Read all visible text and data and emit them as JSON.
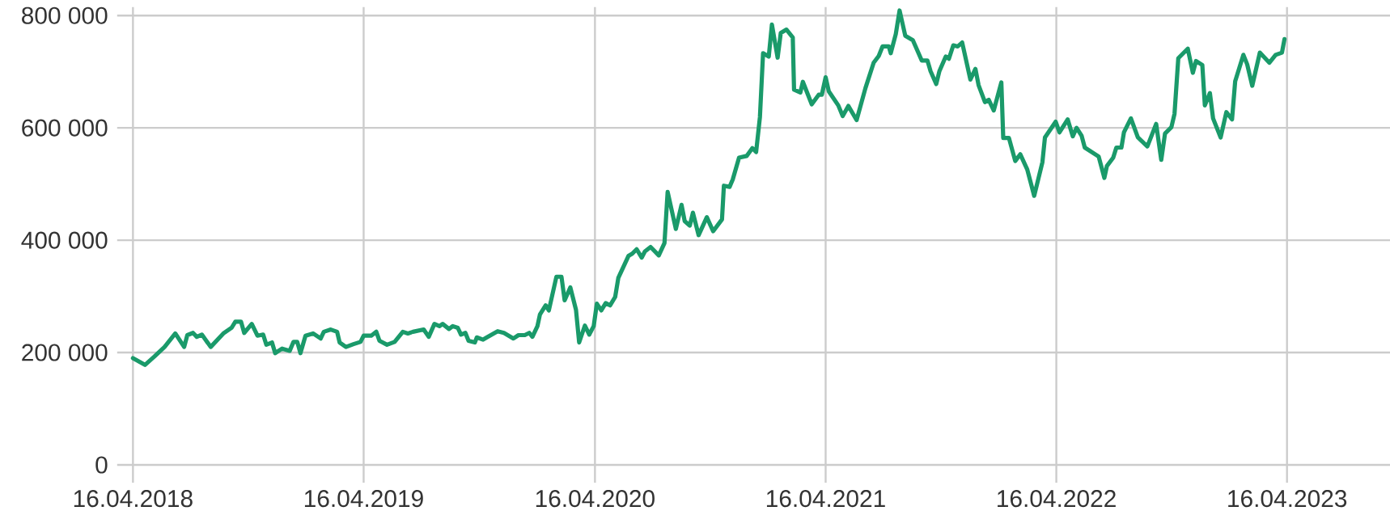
{
  "chart_data": {
    "type": "line",
    "grid": true,
    "xlim": [
      "2018-03-22",
      "2023-09-26"
    ],
    "ylim": [
      0,
      815000
    ],
    "xticks": [
      {
        "value": "2018-04-16",
        "label": "16.04.2018"
      },
      {
        "value": "2019-04-16",
        "label": "16.04.2019"
      },
      {
        "value": "2020-04-16",
        "label": "16.04.2020"
      },
      {
        "value": "2021-04-16",
        "label": "16.04.2021"
      },
      {
        "value": "2022-04-16",
        "label": "16.04.2022"
      },
      {
        "value": "2023-04-16",
        "label": "16.04.2023"
      }
    ],
    "yticks": [
      {
        "value": 0,
        "label": "0"
      },
      {
        "value": 200000,
        "label": "200 000"
      },
      {
        "value": 400000,
        "label": "400 000"
      },
      {
        "value": 600000,
        "label": "600 000"
      },
      {
        "value": 800000,
        "label": "800 000"
      }
    ],
    "x": [
      "2018-04-16",
      "2018-05-05",
      "2018-05-20",
      "2018-06-05",
      "2018-06-22",
      "2018-07-06",
      "2018-07-11",
      "2018-07-20",
      "2018-07-26",
      "2018-08-03",
      "2018-08-17",
      "2018-09-06",
      "2018-09-19",
      "2018-09-25",
      "2018-10-04",
      "2018-10-09",
      "2018-10-21",
      "2018-10-30",
      "2018-11-08",
      "2018-11-13",
      "2018-11-22",
      "2018-11-27",
      "2018-12-08",
      "2018-12-20",
      "2018-12-26",
      "2019-01-01",
      "2019-01-06",
      "2019-01-14",
      "2019-01-26",
      "2019-02-07",
      "2019-02-12",
      "2019-02-23",
      "2019-03-05",
      "2019-03-09",
      "2019-03-19",
      "2019-03-31",
      "2019-04-11",
      "2019-04-16",
      "2019-04-28",
      "2019-05-06",
      "2019-05-11",
      "2019-05-23",
      "2019-06-04",
      "2019-06-17",
      "2019-06-25",
      "2019-07-03",
      "2019-07-20",
      "2019-07-28",
      "2019-08-06",
      "2019-08-14",
      "2019-08-19",
      "2019-08-29",
      "2019-09-04",
      "2019-09-12",
      "2019-09-17",
      "2019-09-24",
      "2019-09-29",
      "2019-10-09",
      "2019-10-12",
      "2019-10-22",
      "2019-10-28",
      "2019-11-14",
      "2019-11-24",
      "2019-12-09",
      "2019-12-17",
      "2019-12-27",
      "2020-01-03",
      "2020-01-08",
      "2020-01-16",
      "2020-01-20",
      "2020-01-29",
      "2020-02-03",
      "2020-02-15",
      "2020-02-23",
      "2020-02-28",
      "2020-03-08",
      "2020-03-17",
      "2020-03-22",
      "2020-03-31",
      "2020-04-07",
      "2020-04-14",
      "2020-04-19",
      "2020-04-26",
      "2020-05-03",
      "2020-05-10",
      "2020-05-18",
      "2020-05-23",
      "2020-06-08",
      "2020-06-14",
      "2020-06-21",
      "2020-06-29",
      "2020-07-04",
      "2020-07-13",
      "2020-07-26",
      "2020-08-04",
      "2020-08-09",
      "2020-08-22",
      "2020-08-31",
      "2020-09-05",
      "2020-09-13",
      "2020-09-18",
      "2020-09-27",
      "2020-10-10",
      "2020-10-20",
      "2020-11-03",
      "2020-11-06",
      "2020-11-15",
      "2020-11-20",
      "2020-11-30",
      "2020-12-12",
      "2020-12-21",
      "2020-12-27",
      "2021-01-02",
      "2021-01-07",
      "2021-01-16",
      "2021-01-21",
      "2021-01-30",
      "2021-02-04",
      "2021-02-13",
      "2021-02-23",
      "2021-02-25",
      "2021-03-07",
      "2021-03-11",
      "2021-03-25",
      "2021-04-05",
      "2021-04-10",
      "2021-04-16",
      "2021-04-21",
      "2021-05-06",
      "2021-05-13",
      "2021-05-22",
      "2021-06-04",
      "2021-06-18",
      "2021-07-01",
      "2021-07-09",
      "2021-07-15",
      "2021-07-25",
      "2021-07-28",
      "2021-08-05",
      "2021-08-11",
      "2021-08-20",
      "2021-09-01",
      "2021-09-15",
      "2021-09-24",
      "2021-09-29",
      "2021-10-08",
      "2021-10-13",
      "2021-10-23",
      "2021-10-28",
      "2021-11-04",
      "2021-11-11",
      "2021-11-18",
      "2021-12-01",
      "2021-12-09",
      "2021-12-14",
      "2021-12-24",
      "2021-12-30",
      "2022-01-07",
      "2022-01-19",
      "2022-01-22",
      "2022-01-31",
      "2022-02-10",
      "2022-02-18",
      "2022-03-01",
      "2022-03-12",
      "2022-03-25",
      "2022-03-29",
      "2022-04-15",
      "2022-04-21",
      "2022-05-04",
      "2022-05-12",
      "2022-05-18",
      "2022-05-26",
      "2022-05-31",
      "2022-06-22",
      "2022-07-01",
      "2022-07-05",
      "2022-07-15",
      "2022-07-20",
      "2022-07-28",
      "2022-08-01",
      "2022-08-12",
      "2022-08-23",
      "2022-09-07",
      "2022-09-21",
      "2022-09-29",
      "2022-10-05",
      "2022-10-15",
      "2022-10-20",
      "2022-10-26",
      "2022-11-10",
      "2022-11-18",
      "2022-11-23",
      "2022-12-03",
      "2022-12-07",
      "2022-12-15",
      "2022-12-20",
      "2023-01-01",
      "2023-01-10",
      "2023-01-19",
      "2023-01-24",
      "2023-02-06",
      "2023-02-12",
      "2023-02-20",
      "2023-03-04",
      "2023-03-19",
      "2023-03-29",
      "2023-04-08",
      "2023-04-12"
    ],
    "series": [
      {
        "color": "#1a9a6a",
        "values": [
          190000,
          178000,
          193000,
          210000,
          234000,
          210000,
          231000,
          235000,
          228000,
          232000,
          210000,
          234000,
          244000,
          255000,
          255000,
          235000,
          251000,
          230000,
          232000,
          214000,
          218000,
          199000,
          207000,
          203000,
          219000,
          219000,
          199000,
          230000,
          234000,
          225000,
          237000,
          241000,
          237000,
          218000,
          210000,
          215000,
          219000,
          230000,
          230000,
          237000,
          221000,
          214000,
          219000,
          237000,
          234000,
          237000,
          241000,
          228000,
          251000,
          247000,
          251000,
          242000,
          247000,
          244000,
          232000,
          235000,
          221000,
          218000,
          227000,
          223000,
          227000,
          238000,
          235000,
          225000,
          231000,
          231000,
          235000,
          228000,
          247000,
          268000,
          284000,
          275000,
          335000,
          335000,
          293000,
          316000,
          276000,
          218000,
          248000,
          232000,
          247000,
          287000,
          275000,
          288000,
          284000,
          299000,
          333000,
          372000,
          376000,
          384000,
          369000,
          380000,
          388000,
          373000,
          395000,
          486000,
          420000,
          463000,
          434000,
          426000,
          449000,
          409000,
          441000,
          416000,
          437000,
          497000,
          495000,
          508000,
          547000,
          550000,
          564000,
          557000,
          619000,
          733000,
          727000,
          784000,
          725000,
          769000,
          775000,
          761000,
          668000,
          663000,
          682000,
          642000,
          659000,
          659000,
          690000,
          665000,
          640000,
          621000,
          639000,
          614000,
          671000,
          716000,
          728000,
          745000,
          745000,
          733000,
          767000,
          809000,
          764000,
          756000,
          720000,
          720000,
          701000,
          678000,
          701000,
          727000,
          723000,
          747000,
          745000,
          752000,
          686000,
          705000,
          676000,
          646000,
          650000,
          631000,
          681000,
          582000,
          582000,
          541000,
          553000,
          526000,
          479000,
          539000,
          583000,
          611000,
          592000,
          615000,
          585000,
          600000,
          586000,
          565000,
          549000,
          511000,
          532000,
          547000,
          565000,
          565000,
          592000,
          617000,
          583000,
          567000,
          607000,
          543000,
          590000,
          601000,
          625000,
          724000,
          741000,
          698000,
          719000,
          712000,
          640000,
          662000,
          617000,
          583000,
          628000,
          615000,
          683000,
          730000,
          713000,
          675000,
          734000,
          716000,
          730000,
          734000,
          758000
        ]
      }
    ]
  }
}
